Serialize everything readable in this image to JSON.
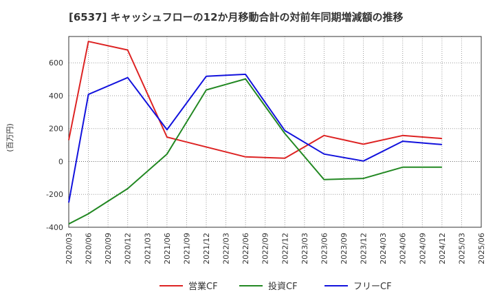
{
  "chart_data": {
    "type": "line",
    "title": "[6537]  キャッシュフローの12か月移動合計の対前年同期増減額の推移",
    "ylabel": "(百万円)",
    "xlabel": "",
    "ylim": [
      -400,
      760
    ],
    "yticks": [
      -400,
      -200,
      0,
      200,
      400,
      600
    ],
    "ytick_labels": [
      "-400",
      "-200",
      "0",
      "200",
      "400",
      "600"
    ],
    "categories": [
      "2020/03",
      "2020/06",
      "2020/09",
      "2020/12",
      "2021/03",
      "2021/06",
      "2021/09",
      "2021/12",
      "2022/03",
      "2022/06",
      "2022/09",
      "2022/12",
      "2023/03",
      "2023/06",
      "2023/09",
      "2023/12",
      "2024/03",
      "2024/06",
      "2024/09",
      "2024/12",
      "2025/03",
      "2025/06"
    ],
    "legend_position": "bottom",
    "series": [
      {
        "name": "営業CF",
        "color": "#dd2222",
        "values": [
          130,
          730,
          null,
          678,
          null,
          148,
          null,
          null,
          null,
          28,
          null,
          20,
          null,
          158,
          null,
          105,
          null,
          158,
          null,
          140,
          null,
          null
        ]
      },
      {
        "name": "投資CF",
        "color": "#228822",
        "values": [
          -380,
          -318,
          null,
          -165,
          null,
          45,
          null,
          435,
          null,
          502,
          null,
          170,
          null,
          -110,
          null,
          -103,
          null,
          -35,
          null,
          -35,
          null,
          null
        ]
      },
      {
        "name": "フリーCF",
        "color": "#1111dd",
        "values": [
          -250,
          408,
          null,
          510,
          null,
          193,
          null,
          518,
          null,
          530,
          null,
          188,
          null,
          45,
          null,
          3,
          null,
          123,
          null,
          103,
          null,
          null
        ]
      }
    ]
  }
}
